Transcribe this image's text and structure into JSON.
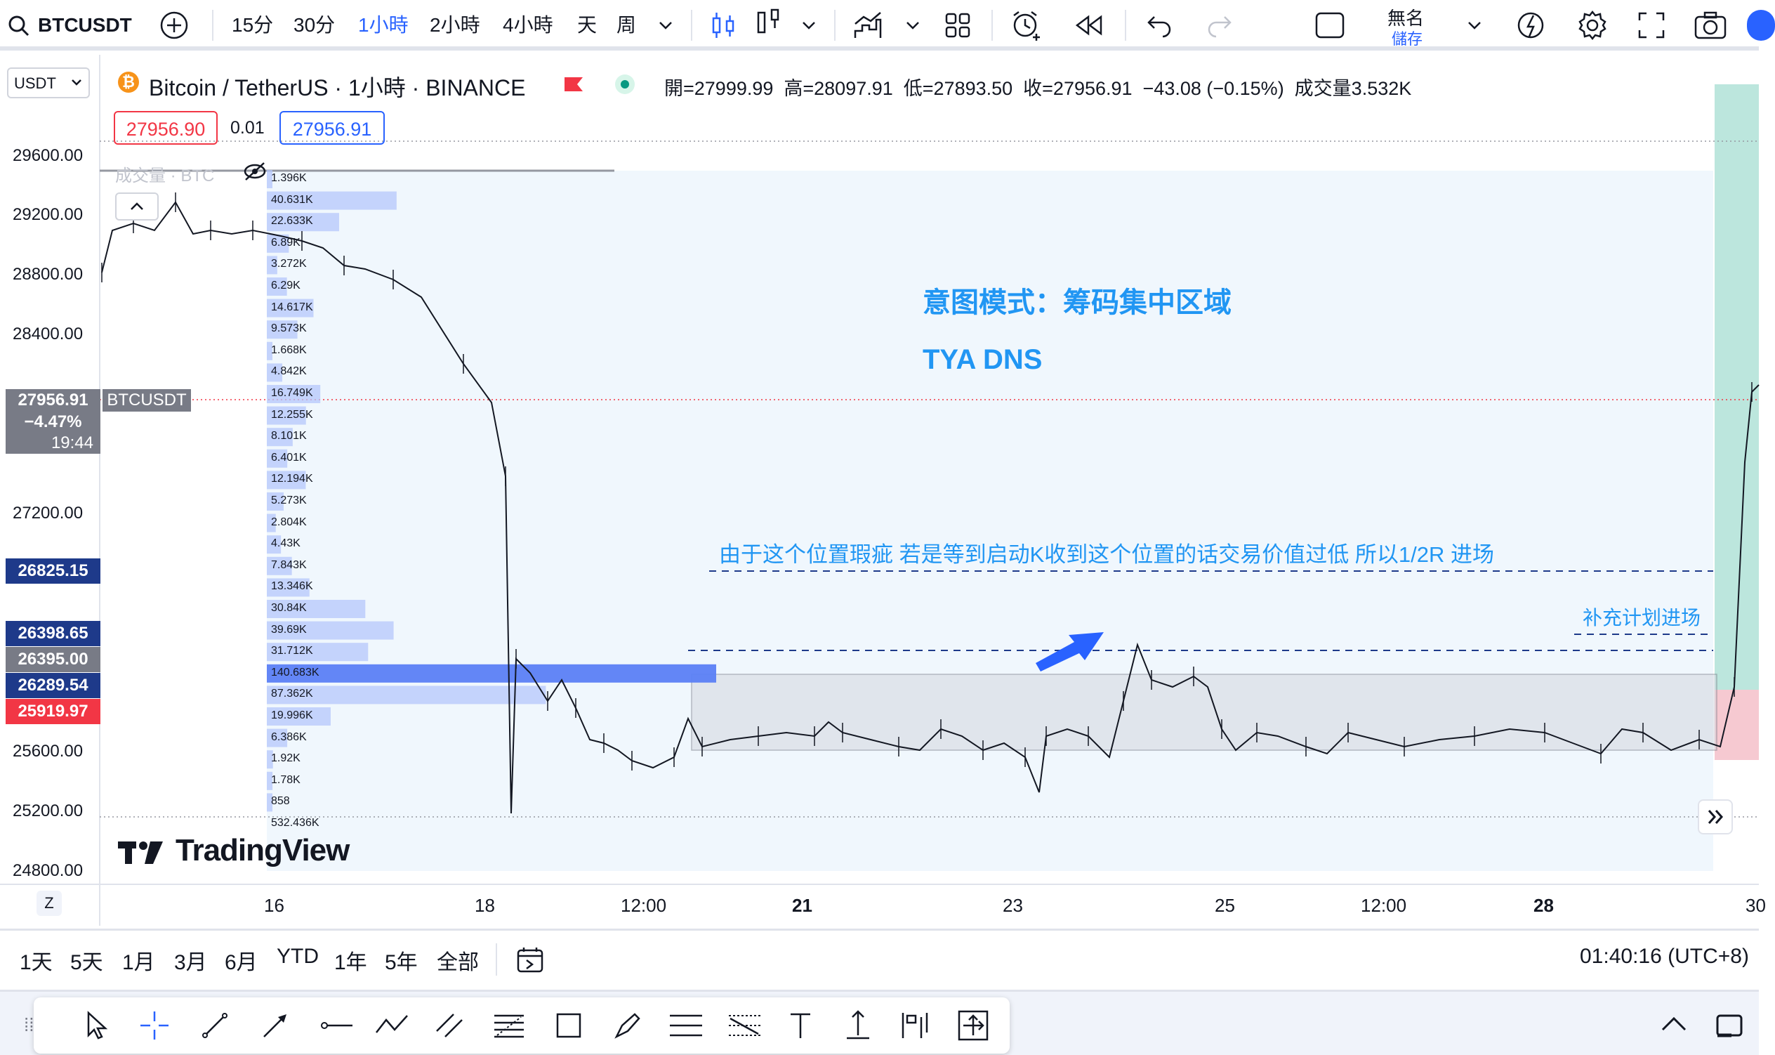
{
  "toolbar": {
    "symbol": "BTCUSDT",
    "intervals": [
      "15分",
      "30分",
      "1小時",
      "2小時",
      "4小時",
      "天",
      "周"
    ],
    "active_interval": "1小時",
    "layout_name": "無名",
    "save_label": "儲存"
  },
  "legend": {
    "currency_select": "USDT",
    "title": "Bitcoin / TetherUS · 1小時 · BINANCE",
    "ohlc": "開=27999.99  高=28097.91  低=27893.50  收=27956.91  −43.08 (−0.15%)  成交量3.532K",
    "sell_price": "27956.90",
    "spread": "0.01",
    "buy_price": "27956.91",
    "volume_overlay_label": "成交量 · BTC"
  },
  "price_axis": {
    "labels": [
      "29600.00",
      "29200.00",
      "28800.00",
      "28400.00",
      "27200.00",
      "25600.00",
      "25200.00",
      "24800.00"
    ],
    "current_price": "27956.91",
    "current_change": "−4.47%",
    "countdown": "19:44",
    "current_symbol_tag": "BTCUSDT",
    "tags": [
      {
        "value": "26825.15",
        "color": "#1e3a8a"
      },
      {
        "value": "26398.65",
        "color": "#1e3a8a"
      },
      {
        "value": "26395.00",
        "color": "#787b86"
      },
      {
        "value": "26289.54",
        "color": "#1e3a8a"
      },
      {
        "value": "25919.97",
        "color": "#f23645"
      }
    ]
  },
  "time_axis": {
    "labels": [
      "Z",
      "16",
      "18",
      "12:00",
      "21",
      "23",
      "25",
      "12:00",
      "28",
      "30"
    ]
  },
  "volume_profile": {
    "labels": [
      "1.396K",
      "40.631K",
      "22.633K",
      "6.89K",
      "3.272K",
      "6.29K",
      "14.617K",
      "9.573K",
      "1.668K",
      "4.842K",
      "16.749K",
      "12.255K",
      "8.101K",
      "6.401K",
      "12.194K",
      "5.273K",
      "2.804K",
      "4.43K",
      "7.843K",
      "13.346K",
      "30.84K",
      "39.69K",
      "31.712K",
      "140.683K",
      "87.362K",
      "19.996K",
      "6.386K",
      "1.92K",
      "1.78K",
      "858",
      "532.436K"
    ]
  },
  "annotations": {
    "title": "意图模式：筹码集中区域",
    "subtitle": "TYA DNS",
    "note": "由于这个位置瑕疵 若是等到启动K收到这个位置的话交易价值过低 所以1/2R 进场",
    "supplement": "补充计划进场"
  },
  "brand": {
    "logo_text": "TradingView"
  },
  "range_bar": {
    "ranges": [
      "1天",
      "5天",
      "1月",
      "3月",
      "6月",
      "YTD",
      "1年",
      "5年",
      "全部"
    ],
    "clock": "01:40:16 (UTC+8)"
  },
  "colors": {
    "accent": "#2962ff",
    "zone_fill": "#f0f7fd",
    "profile_bar": "#b5c7fb",
    "poc_bar": "#5b7ff5",
    "annotation_text": "#2196f3"
  }
}
